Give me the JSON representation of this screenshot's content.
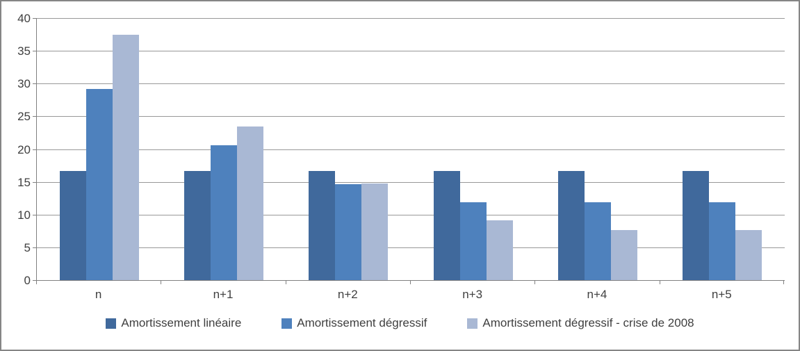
{
  "chart_data": {
    "type": "bar",
    "title": "",
    "xlabel": "",
    "ylabel": "",
    "categories": [
      "n",
      "n+1",
      "n+2",
      "n+3",
      "n+4",
      "n+5"
    ],
    "series": [
      {
        "name": "Amortissement linéaire",
        "color": "#40699C",
        "values": [
          16.7,
          16.7,
          16.7,
          16.7,
          16.7,
          16.7
        ]
      },
      {
        "name": "Amortissement dégressif",
        "color": "#4E81BD",
        "values": [
          29.2,
          20.6,
          14.6,
          11.85,
          11.85,
          11.85
        ]
      },
      {
        "name": "Amortissement dégressif - crise de 2008",
        "color": "#A9B8D4",
        "values": [
          37.5,
          23.4,
          14.7,
          9.15,
          7.6,
          7.6
        ]
      }
    ],
    "ylim": [
      0,
      40
    ],
    "yticks": [
      0,
      5,
      10,
      15,
      20,
      25,
      30,
      35,
      40
    ],
    "grid": true,
    "legend_position": "bottom",
    "colors": {
      "axis": "#808080",
      "gridline": "#989898",
      "border": "#858585",
      "text": "#3f3f3f"
    }
  }
}
